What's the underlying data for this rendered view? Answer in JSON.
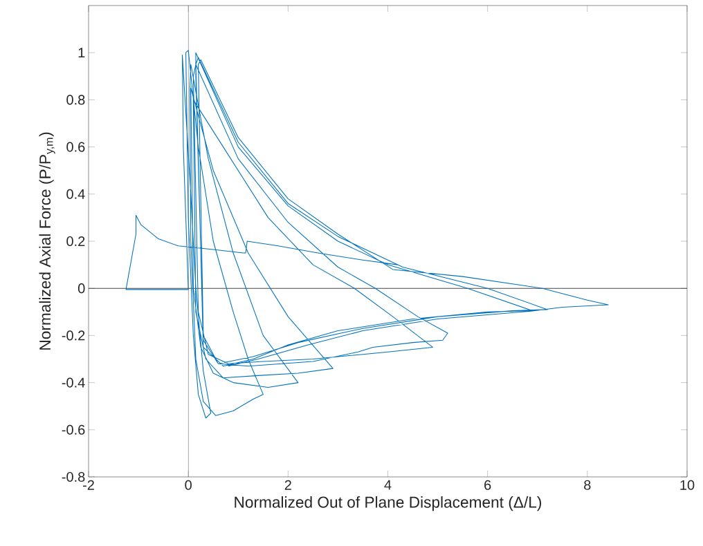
{
  "chart_data": {
    "type": "line",
    "xlabel": "Normalized Out of Plane Displacement (Δ/L)",
    "ylabel": "Normalized Axial Force (P/P$_{y,m}$)",
    "xlim": [
      -2,
      10
    ],
    "ylim": [
      -0.8,
      1.2
    ],
    "xticks": [
      -2,
      0,
      2,
      4,
      6,
      8,
      10
    ],
    "yticks": [
      -0.8,
      -0.6,
      -0.4,
      -0.2,
      0,
      0.2,
      0.4,
      0.6,
      0.8,
      1
    ],
    "marker": "none",
    "ref_lines": [
      {
        "axis": "x",
        "value": 0,
        "color": "#5a5a5a"
      },
      {
        "axis": "y",
        "value": 0,
        "color": "#262626"
      }
    ],
    "series": [
      {
        "color": "#0072bd",
        "x": [
          4.2,
          3.5,
          2.6,
          1.8,
          1.18,
          1.15,
          1.1,
          0.5,
          -0.2,
          -0.6,
          -0.95,
          -1.05,
          -1.05,
          -1.25,
          0.0,
          -0.1,
          -0.12,
          -0.08,
          0.05,
          0.15,
          0.3,
          0.45,
          0.35,
          0.2,
          0.1,
          0.0,
          -0.05,
          0.0,
          0.2,
          0.5,
          0.9,
          1.2,
          1.5,
          1.3,
          0.9,
          0.55,
          0.3,
          0.15,
          0.05,
          0.03,
          0.05,
          0.4,
          0.9,
          1.5,
          2.2,
          1.6,
          0.9,
          0.5,
          0.25,
          0.1,
          0.05,
          0.5,
          1.2,
          2.0,
          2.9,
          2.2,
          1.4,
          0.7,
          0.35,
          0.15,
          0.1,
          0.7,
          1.6,
          2.5,
          3.33,
          4.1,
          4.9,
          4.0,
          3.5,
          2.5,
          1.5,
          0.8,
          0.4,
          0.2,
          0.1,
          0.15,
          1.0,
          2.0,
          3.0,
          3.75,
          4.6,
          5.2,
          5.1,
          4.5,
          3.7,
          3.4,
          2.5,
          1.2,
          0.6,
          0.3,
          0.15,
          0.15,
          1.0,
          2.0,
          3.0,
          4.0,
          5.6,
          6.9,
          6.0,
          4.5,
          3.0,
          2.0,
          1.3,
          0.7,
          0.3,
          0.15,
          0.2,
          1.0,
          2.0,
          3.0,
          4.3,
          6.0,
          7.2,
          6.5,
          5.0,
          3.5,
          2.2,
          1.3,
          0.6,
          0.3,
          0.2,
          0.25,
          1.0,
          2.0,
          3.0,
          4.1,
          5.5,
          7.1,
          8.0,
          8.42,
          7.5,
          6.87,
          5.0,
          3.5,
          2.4,
          1.4,
          0.8
        ],
        "values": [
          0.1,
          0.12,
          0.15,
          0.18,
          0.2,
          0.15,
          0.15,
          0.165,
          0.18,
          0.21,
          0.27,
          0.31,
          0.23,
          -0.005,
          -0.005,
          0.6,
          0.99,
          0.85,
          0.4,
          0.0,
          -0.35,
          -0.53,
          -0.55,
          -0.45,
          -0.2,
          0.3,
          1.0,
          1.01,
          0.6,
          0.2,
          -0.1,
          -0.3,
          -0.45,
          -0.47,
          -0.52,
          -0.54,
          -0.48,
          -0.3,
          0.2,
          0.85,
          0.95,
          0.55,
          0.15,
          -0.2,
          -0.4,
          -0.42,
          -0.4,
          -0.36,
          -0.25,
          0.0,
          0.85,
          0.5,
          0.15,
          -0.12,
          -0.34,
          -0.36,
          -0.37,
          -0.38,
          -0.3,
          -0.1,
          0.8,
          0.6,
          0.3,
          0.1,
          0.0,
          -0.12,
          -0.25,
          -0.27,
          -0.28,
          -0.3,
          -0.31,
          -0.32,
          -0.28,
          -0.1,
          0.9,
          0.95,
          0.55,
          0.28,
          0.09,
          0.0,
          -0.12,
          -0.19,
          -0.22,
          -0.23,
          -0.25,
          -0.27,
          -0.31,
          -0.33,
          -0.32,
          -0.22,
          0.9,
          1.0,
          0.6,
          0.35,
          0.2,
          0.1,
          0.0,
          -0.095,
          -0.1,
          -0.13,
          -0.18,
          -0.24,
          -0.3,
          -0.33,
          -0.25,
          0.95,
          0.98,
          0.62,
          0.36,
          0.22,
          0.09,
          0.0,
          -0.09,
          -0.095,
          -0.12,
          -0.17,
          -0.23,
          -0.29,
          -0.32,
          -0.2,
          0.95,
          0.97,
          0.64,
          0.38,
          0.23,
          0.08,
          0.05,
          0.0,
          -0.05,
          -0.07,
          -0.08,
          -0.097,
          -0.13,
          -0.18,
          -0.24,
          -0.3,
          -0.33
        ]
      }
    ]
  }
}
